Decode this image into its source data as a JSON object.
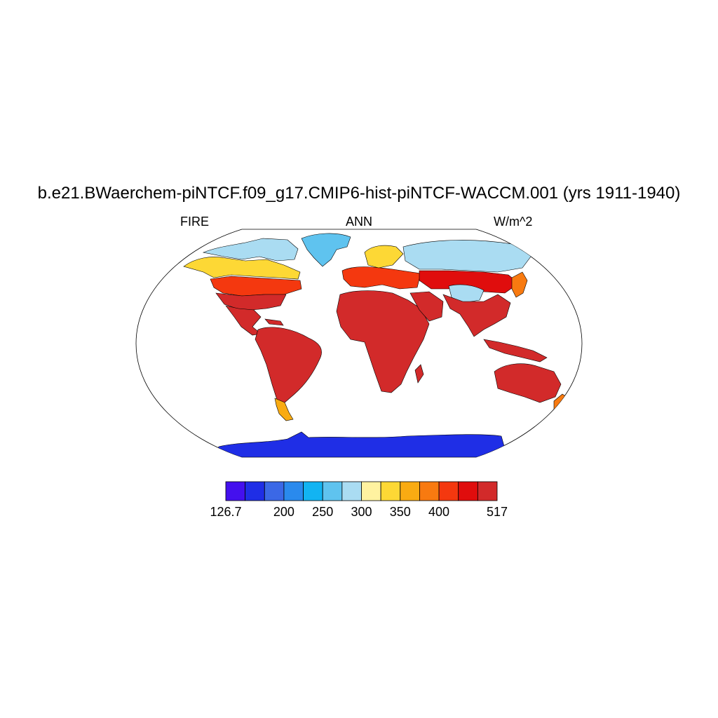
{
  "figure": {
    "title": "b.e21.BWaerchem-piNTCF.f09_g17.CMIP6-hist-piNTCF-WACCM.001 (yrs 1911-1940)",
    "left_label": "FIRE",
    "center_label": "ANN",
    "right_label": "W/m^2"
  },
  "map": {
    "projection": "Robinson",
    "variable": "FIRE",
    "season": "ANN",
    "units": "W/m^2",
    "ocean_masked": true,
    "ocean_color": "#ffffff",
    "coastline_color": "#000000",
    "regions": [
      {
        "name": "antarctica",
        "level": 1
      },
      {
        "name": "greenland",
        "level": 5
      },
      {
        "name": "arctic-north-america",
        "level": 6
      },
      {
        "name": "alaska-canada",
        "level": 8
      },
      {
        "name": "north-america-mid",
        "level": 11
      },
      {
        "name": "usa-south",
        "level": 13
      },
      {
        "name": "central-america",
        "level": 14
      },
      {
        "name": "south-america",
        "level": 14
      },
      {
        "name": "patagonia",
        "level": 9
      },
      {
        "name": "europe",
        "level": 11
      },
      {
        "name": "scandinavia",
        "level": 8
      },
      {
        "name": "siberia",
        "level": 6
      },
      {
        "name": "central-asia",
        "level": 12
      },
      {
        "name": "tibet",
        "level": 6
      },
      {
        "name": "africa",
        "level": 14
      },
      {
        "name": "india-se-asia",
        "level": 14
      },
      {
        "name": "japan-korea",
        "level": 10
      },
      {
        "name": "australia",
        "level": 14
      },
      {
        "name": "new-zealand",
        "level": 10
      }
    ]
  },
  "colorbar": {
    "colors": [
      "#4410ee",
      "#1f2ee6",
      "#3b68e6",
      "#2a8aed",
      "#12b4f2",
      "#5fc3ef",
      "#aadcf2",
      "#fff2a0",
      "#fdd835",
      "#f9ab12",
      "#f87a10",
      "#f4380f",
      "#e00d0d",
      "#d22a2a"
    ],
    "bounds": [
      126.7,
      150,
      175,
      200,
      225,
      250,
      275,
      300,
      325,
      350,
      375,
      400,
      425,
      450,
      517
    ],
    "tick_labels": [
      {
        "text": "126.7",
        "index": 0
      },
      {
        "text": "200",
        "index": 3
      },
      {
        "text": "250",
        "index": 5
      },
      {
        "text": "300",
        "index": 7
      },
      {
        "text": "350",
        "index": 9
      },
      {
        "text": "400",
        "index": 11
      },
      {
        "text": "517",
        "index": 14
      }
    ]
  }
}
